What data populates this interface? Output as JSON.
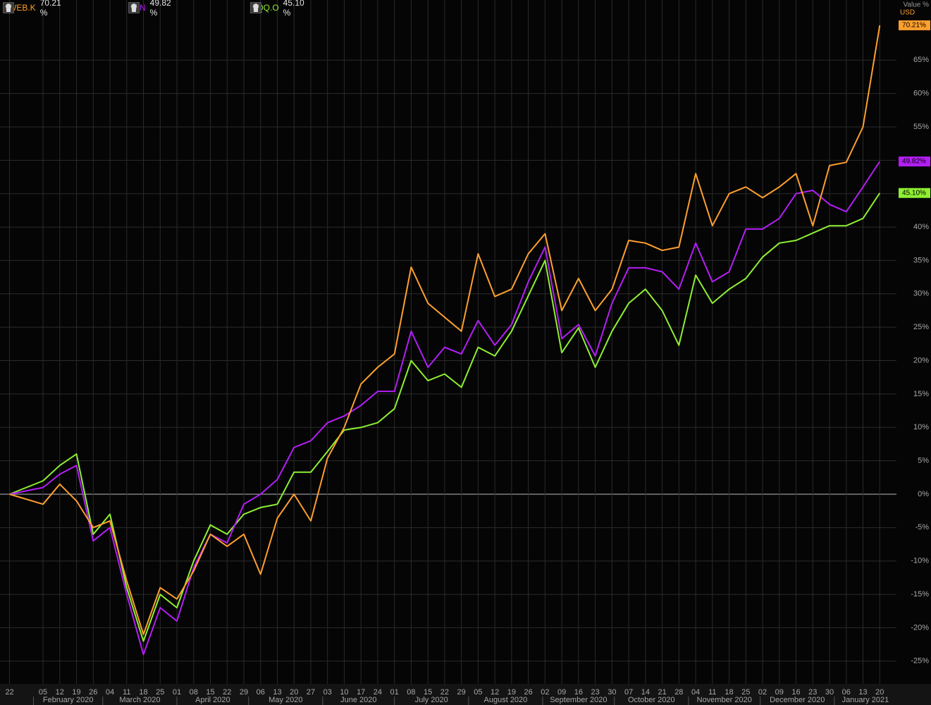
{
  "chart_data": {
    "type": "line",
    "y_axis_title": "Value %",
    "currency": "USD",
    "grid": true,
    "x": [
      "2020-01-22",
      "2020-02-05",
      "2020-02-12",
      "2020-02-19",
      "2020-02-26",
      "2020-03-04",
      "2020-03-11",
      "2020-03-18",
      "2020-03-25",
      "2020-04-01",
      "2020-04-08",
      "2020-04-15",
      "2020-04-22",
      "2020-04-29",
      "2020-05-06",
      "2020-05-13",
      "2020-05-20",
      "2020-05-27",
      "2020-06-03",
      "2020-06-10",
      "2020-06-17",
      "2020-06-24",
      "2020-07-01",
      "2020-07-08",
      "2020-07-15",
      "2020-07-22",
      "2020-07-29",
      "2020-08-05",
      "2020-08-12",
      "2020-08-19",
      "2020-08-26",
      "2020-09-02",
      "2020-09-09",
      "2020-09-16",
      "2020-09-23",
      "2020-09-30",
      "2020-10-07",
      "2020-10-14",
      "2020-10-21",
      "2020-10-28",
      "2020-11-04",
      "2020-11-11",
      "2020-11-18",
      "2020-11-25",
      "2020-12-02",
      "2020-12-09",
      "2020-12-16",
      "2020-12-23",
      "2020-12-30",
      "2021-01-06",
      "2021-01-13",
      "2021-01-20"
    ],
    "series": [
      {
        "name": "KWEB.K",
        "color": "#ff9f2e",
        "label": "70.21 %",
        "badge": "70.21%",
        "values": [
          0,
          -1.5,
          1.5,
          -1,
          -5,
          -4,
          -13,
          -21,
          -14,
          -15.7,
          -11.5,
          -6,
          -7.8,
          -6,
          -12,
          -3.6,
          0,
          -4,
          5.4,
          10,
          16.5,
          19,
          21,
          34,
          28.6,
          26.5,
          24.4,
          36,
          29.6,
          30.7,
          36,
          39,
          27.5,
          32.3,
          27.5,
          30.7,
          38,
          37.6,
          36.5,
          37,
          48,
          40.2,
          45,
          46,
          44.4,
          46,
          48,
          40.2,
          49.2,
          49.7,
          55,
          70.21
        ]
      },
      {
        "name": "FDN",
        "color": "#b41ef5",
        "label": "49.82 %",
        "badge": "49.82%",
        "values": [
          0,
          1,
          3,
          4.3,
          -7,
          -5,
          -15,
          -24,
          -17,
          -19,
          -11,
          -6,
          -7.3,
          -1.5,
          0,
          2.2,
          7,
          8,
          10.7,
          11.7,
          13.3,
          15.4,
          15.4,
          24.4,
          19,
          22,
          21,
          26,
          22.3,
          25.4,
          31.8,
          37,
          23.3,
          25.4,
          20.7,
          28.6,
          33.9,
          33.9,
          33.3,
          30.7,
          37.6,
          31.8,
          33.3,
          39.7,
          39.7,
          41.3,
          45,
          45.5,
          43.4,
          42.3,
          46,
          49.82
        ]
      },
      {
        "name": "QQQ.O",
        "color": "#8ef032",
        "label": "45.10 %",
        "badge": "45.10%",
        "values": [
          0,
          2,
          4.3,
          6,
          -6,
          -3,
          -14,
          -22,
          -15,
          -17,
          -10,
          -4.6,
          -6,
          -3,
          -2,
          -1.5,
          3.3,
          3.3,
          6.4,
          9.6,
          10,
          10.7,
          12.8,
          20,
          17,
          18,
          16,
          22,
          20.7,
          24.4,
          29.7,
          35,
          21.2,
          24.9,
          19,
          24.4,
          28.6,
          30.7,
          27.5,
          22.3,
          32.8,
          28.6,
          30.7,
          32.3,
          35.5,
          37.6,
          38,
          39.1,
          40.2,
          40.2,
          41.3,
          45.1
        ]
      }
    ],
    "xlim": [
      "2020-01-18",
      "2021-01-27"
    ],
    "xticks": [
      {
        "value": "2020-01-22",
        "label": "22"
      },
      {
        "value": "2020-02-05",
        "label": "05"
      },
      {
        "value": "2020-02-12",
        "label": "12"
      },
      {
        "value": "2020-02-19",
        "label": "19"
      },
      {
        "value": "2020-02-26",
        "label": "26"
      },
      {
        "value": "2020-03-04",
        "label": "04"
      },
      {
        "value": "2020-03-11",
        "label": "11"
      },
      {
        "value": "2020-03-18",
        "label": "18"
      },
      {
        "value": "2020-03-25",
        "label": "25"
      },
      {
        "value": "2020-04-01",
        "label": "01"
      },
      {
        "value": "2020-04-08",
        "label": "08"
      },
      {
        "value": "2020-04-15",
        "label": "15"
      },
      {
        "value": "2020-04-22",
        "label": "22"
      },
      {
        "value": "2020-04-29",
        "label": "29"
      },
      {
        "value": "2020-05-06",
        "label": "06"
      },
      {
        "value": "2020-05-13",
        "label": "13"
      },
      {
        "value": "2020-05-20",
        "label": "20"
      },
      {
        "value": "2020-05-27",
        "label": "27"
      },
      {
        "value": "2020-06-03",
        "label": "03"
      },
      {
        "value": "2020-06-10",
        "label": "10"
      },
      {
        "value": "2020-06-17",
        "label": "17"
      },
      {
        "value": "2020-06-24",
        "label": "24"
      },
      {
        "value": "2020-07-01",
        "label": "01"
      },
      {
        "value": "2020-07-08",
        "label": "08"
      },
      {
        "value": "2020-07-15",
        "label": "15"
      },
      {
        "value": "2020-07-22",
        "label": "22"
      },
      {
        "value": "2020-07-29",
        "label": "29"
      },
      {
        "value": "2020-08-05",
        "label": "05"
      },
      {
        "value": "2020-08-12",
        "label": "12"
      },
      {
        "value": "2020-08-19",
        "label": "19"
      },
      {
        "value": "2020-08-26",
        "label": "26"
      },
      {
        "value": "2020-09-02",
        "label": "02"
      },
      {
        "value": "2020-09-09",
        "label": "09"
      },
      {
        "value": "2020-09-16",
        "label": "16"
      },
      {
        "value": "2020-09-23",
        "label": "23"
      },
      {
        "value": "2020-09-30",
        "label": "30"
      },
      {
        "value": "2020-10-07",
        "label": "07"
      },
      {
        "value": "2020-10-14",
        "label": "14"
      },
      {
        "value": "2020-10-21",
        "label": "21"
      },
      {
        "value": "2020-10-28",
        "label": "28"
      },
      {
        "value": "2020-11-04",
        "label": "04"
      },
      {
        "value": "2020-11-11",
        "label": "11"
      },
      {
        "value": "2020-11-18",
        "label": "18"
      },
      {
        "value": "2020-11-25",
        "label": "25"
      },
      {
        "value": "2020-12-02",
        "label": "02"
      },
      {
        "value": "2020-12-09",
        "label": "09"
      },
      {
        "value": "2020-12-16",
        "label": "16"
      },
      {
        "value": "2020-12-23",
        "label": "23"
      },
      {
        "value": "2020-12-30",
        "label": "30"
      },
      {
        "value": "2021-01-06",
        "label": "06"
      },
      {
        "value": "2021-01-13",
        "label": "13"
      },
      {
        "value": "2021-01-20",
        "label": "20"
      }
    ],
    "months": [
      {
        "value": "2020-02",
        "label": "February 2020"
      },
      {
        "value": "2020-03",
        "label": "March 2020"
      },
      {
        "value": "2020-04",
        "label": "April 2020"
      },
      {
        "value": "2020-05",
        "label": "May 2020"
      },
      {
        "value": "2020-06",
        "label": "June 2020"
      },
      {
        "value": "2020-07",
        "label": "July 2020"
      },
      {
        "value": "2020-08",
        "label": "August 2020"
      },
      {
        "value": "2020-09",
        "label": "September 2020"
      },
      {
        "value": "2020-10",
        "label": "October 2020"
      },
      {
        "value": "2020-11",
        "label": "November 2020"
      },
      {
        "value": "2020-12",
        "label": "December 2020"
      },
      {
        "value": "2021-01",
        "label": "January 2021"
      }
    ],
    "ylim": [
      -28.4,
      74
    ],
    "yticks": [
      {
        "value": -25,
        "label": "-25%"
      },
      {
        "value": -20,
        "label": "-20%"
      },
      {
        "value": -15,
        "label": "-15%"
      },
      {
        "value": -10,
        "label": "-10%"
      },
      {
        "value": -5,
        "label": "-5%"
      },
      {
        "value": 0,
        "label": "0%"
      },
      {
        "value": 5,
        "label": "5%"
      },
      {
        "value": 10,
        "label": "10%"
      },
      {
        "value": 15,
        "label": "15%"
      },
      {
        "value": 20,
        "label": "20%"
      },
      {
        "value": 25,
        "label": "25%"
      },
      {
        "value": 30,
        "label": "30%"
      },
      {
        "value": 35,
        "label": "35%"
      },
      {
        "value": 40,
        "label": "40%"
      },
      {
        "value": 45,
        "label": "45%"
      },
      {
        "value": 50,
        "label": "50%"
      },
      {
        "value": 55,
        "label": "55%"
      },
      {
        "value": 60,
        "label": "60%"
      },
      {
        "value": 65,
        "label": "65%"
      }
    ]
  }
}
